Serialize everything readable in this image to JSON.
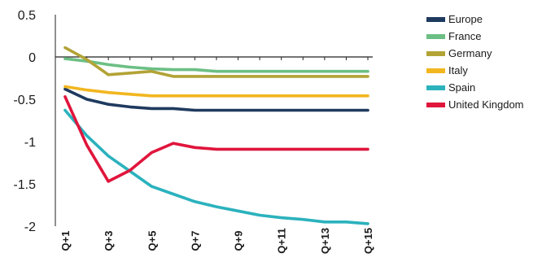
{
  "chart_data": {
    "type": "line",
    "title": "",
    "xlabel": "",
    "ylabel": "",
    "ylim": [
      -2,
      0.5
    ],
    "yticks": [
      "0.5",
      "0",
      "-0.5",
      "-1",
      "-1.5",
      "-2"
    ],
    "x": [
      "Q+1",
      "Q+2",
      "Q+3",
      "Q+4",
      "Q+5",
      "Q+6",
      "Q+7",
      "Q+8",
      "Q+9",
      "Q+10",
      "Q+11",
      "Q+12",
      "Q+13",
      "Q+14",
      "Q+15"
    ],
    "xtick_labels": [
      "Q+1",
      "Q+3",
      "Q+5",
      "Q+7",
      "Q+9",
      "Q+11",
      "Q+13",
      "Q+15"
    ],
    "legend_position": "top-right",
    "grid": false,
    "series": [
      {
        "name": "Europe",
        "color": "#1f3a5f",
        "values": [
          -0.38,
          -0.5,
          -0.56,
          -0.59,
          -0.61,
          -0.61,
          -0.63,
          -0.63,
          -0.63,
          -0.63,
          -0.63,
          -0.63,
          -0.63,
          -0.63,
          -0.63
        ]
      },
      {
        "name": "France",
        "color": "#6cbf84",
        "values": [
          -0.02,
          -0.05,
          -0.09,
          -0.12,
          -0.14,
          -0.15,
          -0.15,
          -0.17,
          -0.17,
          -0.17,
          -0.17,
          -0.17,
          -0.17,
          -0.17,
          -0.17
        ]
      },
      {
        "name": "Germany",
        "color": "#b2a336",
        "values": [
          0.11,
          -0.03,
          -0.21,
          -0.19,
          -0.17,
          -0.23,
          -0.23,
          -0.23,
          -0.23,
          -0.23,
          -0.23,
          -0.23,
          -0.23,
          -0.23,
          -0.23
        ]
      },
      {
        "name": "Italy",
        "color": "#f2b61f",
        "values": [
          -0.35,
          -0.39,
          -0.42,
          -0.44,
          -0.46,
          -0.46,
          -0.46,
          -0.46,
          -0.46,
          -0.46,
          -0.46,
          -0.46,
          -0.46,
          -0.46,
          -0.46
        ]
      },
      {
        "name": "Spain",
        "color": "#2bb2bd",
        "values": [
          -0.63,
          -0.93,
          -1.17,
          -1.35,
          -1.53,
          -1.62,
          -1.71,
          -1.77,
          -1.82,
          -1.87,
          -1.9,
          -1.92,
          -1.95,
          -1.95,
          -1.97
        ]
      },
      {
        "name": "United Kingdom",
        "color": "#e0153c",
        "values": [
          -0.47,
          -1.04,
          -1.47,
          -1.34,
          -1.13,
          -1.02,
          -1.07,
          -1.09,
          -1.09,
          -1.09,
          -1.09,
          -1.09,
          -1.09,
          -1.09,
          -1.09
        ]
      }
    ]
  }
}
